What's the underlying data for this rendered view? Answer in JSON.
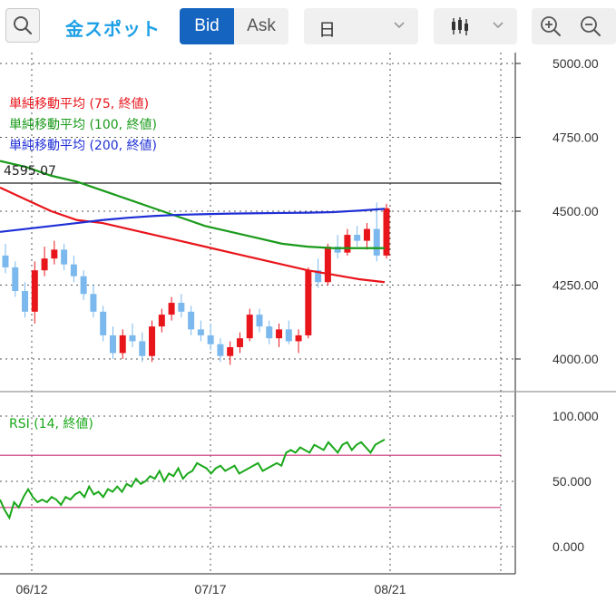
{
  "toolbar": {
    "search_icon": "search-icon",
    "instrument": "金スポット",
    "bid_label": "Bid",
    "ask_label": "Ask",
    "period_value": "日",
    "chart_type_icon": "candlestick-icon",
    "zoom_in_icon": "zoom-in-icon",
    "zoom_out_icon": "zoom-out-icon"
  },
  "legend": {
    "ma75": "単純移動平均 (75, 終値)",
    "ma100": "単純移動平均 (100, 終値)",
    "ma200": "単純移動平均 (200, 終値)",
    "rsi": "RSI (14, 終値)",
    "price_line_label": "4595.07"
  },
  "colors": {
    "up": "#e8151b",
    "down": "#7ab8ee",
    "ma75": "#e8151b",
    "ma100": "#1a9a1a",
    "ma200": "#1f2fd6",
    "rsi": "#1aa81a",
    "rsi_bands": "#cc3377",
    "accent": "#1565c0"
  },
  "chart_data": [
    {
      "type": "candlestick",
      "yticks": [
        "5000.00",
        "4750.00",
        "4500.00",
        "4250.00",
        "4000.00"
      ],
      "ylim": [
        3900,
        5050
      ],
      "xticks": [
        "06/12",
        "07/17",
        "08/21"
      ],
      "horizontal_line": 4595.07,
      "candles": [
        [
          4350,
          4390,
          4290,
          4310
        ],
        [
          4310,
          4330,
          4210,
          4230
        ],
        [
          4230,
          4260,
          4140,
          4160
        ],
        [
          4160,
          4330,
          4120,
          4300
        ],
        [
          4300,
          4380,
          4280,
          4340
        ],
        [
          4340,
          4400,
          4320,
          4370
        ],
        [
          4370,
          4390,
          4300,
          4320
        ],
        [
          4320,
          4350,
          4260,
          4280
        ],
        [
          4280,
          4300,
          4200,
          4220
        ],
        [
          4220,
          4250,
          4140,
          4160
        ],
        [
          4160,
          4180,
          4060,
          4080
        ],
        [
          4080,
          4110,
          4000,
          4020
        ],
        [
          4020,
          4100,
          4000,
          4080
        ],
        [
          4080,
          4120,
          4040,
          4060
        ],
        [
          4060,
          4090,
          3990,
          4010
        ],
        [
          4010,
          4130,
          3990,
          4110
        ],
        [
          4110,
          4170,
          4090,
          4150
        ],
        [
          4150,
          4210,
          4130,
          4190
        ],
        [
          4190,
          4220,
          4140,
          4160
        ],
        [
          4160,
          4180,
          4080,
          4100
        ],
        [
          4100,
          4130,
          4060,
          4080
        ],
        [
          4080,
          4120,
          4030,
          4050
        ],
        [
          4050,
          4070,
          3990,
          4010
        ],
        [
          4010,
          4060,
          3980,
          4040
        ],
        [
          4040,
          4090,
          4020,
          4070
        ],
        [
          4070,
          4170,
          4060,
          4150
        ],
        [
          4150,
          4170,
          4090,
          4110
        ],
        [
          4110,
          4130,
          4050,
          4070
        ],
        [
          4070,
          4120,
          4040,
          4100
        ],
        [
          4100,
          4130,
          4050,
          4060
        ],
        [
          4060,
          4100,
          4020,
          4080
        ],
        [
          4080,
          4310,
          4070,
          4300
        ],
        [
          4300,
          4340,
          4240,
          4260
        ],
        [
          4260,
          4390,
          4250,
          4380
        ],
        [
          4380,
          4420,
          4340,
          4360
        ],
        [
          4360,
          4440,
          4350,
          4420
        ],
        [
          4420,
          4450,
          4380,
          4400
        ],
        [
          4400,
          4460,
          4370,
          4440
        ],
        [
          4440,
          4530,
          4330,
          4350
        ],
        [
          4350,
          4525,
          4340,
          4510
        ]
      ],
      "series": [
        {
          "name": "単純移動平均 (75, 終値)",
          "values": [
            4580,
            4540,
            4500,
            4470,
            4460,
            4440,
            4420,
            4400,
            4380,
            4360,
            4340,
            4320,
            4300,
            4285,
            4270,
            4260
          ]
        },
        {
          "name": "単純移動平均 (100, 終値)",
          "values": [
            4670,
            4650,
            4620,
            4600,
            4570,
            4540,
            4510,
            4480,
            4450,
            4430,
            4410,
            4390,
            4380,
            4375,
            4375,
            4375
          ]
        },
        {
          "name": "単純移動平均 (200, 終値)",
          "values": [
            4430,
            4440,
            4450,
            4460,
            4470,
            4478,
            4484,
            4488,
            4490,
            4492,
            4493,
            4494,
            4495,
            4497,
            4502,
            4508
          ]
        }
      ]
    },
    {
      "type": "line",
      "name": "RSI (14, 終値)",
      "yticks": [
        "100.000",
        "50.000",
        "0.000"
      ],
      "ylim": [
        -10,
        110
      ],
      "bands": [
        70,
        30
      ],
      "values": [
        36,
        28,
        22,
        34,
        30,
        38,
        44,
        38,
        34,
        36,
        34,
        38,
        36,
        32,
        38,
        36,
        40,
        42,
        38,
        46,
        40,
        42,
        38,
        44,
        42,
        46,
        42,
        48,
        46,
        52,
        48,
        50,
        54,
        52,
        58,
        50,
        56,
        54,
        60,
        52,
        56,
        58,
        64,
        62,
        60,
        56,
        60,
        62,
        58,
        60,
        62,
        56,
        58,
        60,
        62,
        64,
        58,
        60,
        62,
        64,
        62,
        72,
        74,
        72,
        76,
        74,
        72,
        78,
        76,
        74,
        80,
        76,
        72,
        78,
        80,
        74,
        78,
        80,
        76,
        72,
        78,
        80,
        82
      ],
      "xticks": [
        "06/12",
        "07/17",
        "08/21"
      ]
    }
  ]
}
